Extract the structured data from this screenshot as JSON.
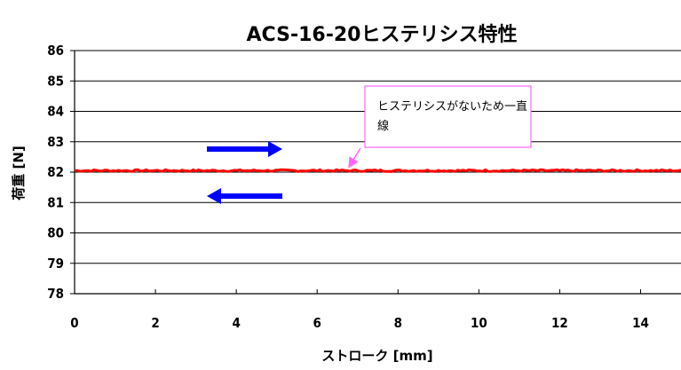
{
  "chart_data": {
    "type": "line",
    "title": "ACS-16-20ヒステリシス特性",
    "xlabel": "ストローク [mm]",
    "ylabel": "荷重 [N]",
    "xlim": [
      0,
      15
    ],
    "ylim": [
      78,
      86
    ],
    "xticks": [
      0,
      2,
      4,
      6,
      8,
      10,
      12,
      14
    ],
    "yticks": [
      78,
      79,
      80,
      81,
      82,
      83,
      84,
      85,
      86
    ],
    "grid": "horizontal",
    "series": [
      {
        "color": "#ff0000",
        "x": [
          0,
          15
        ],
        "y": [
          82.05,
          82.05
        ]
      }
    ],
    "annotations": [
      {
        "text": "ヒステリシスがないため一直線",
        "line1": "ヒステリシスがないため一直",
        "line2": "線",
        "box_color": "#ff66ff",
        "arrow_target": {
          "x": 6.7,
          "y": 82.05
        }
      }
    ],
    "direction_arrows": [
      {
        "direction": "right",
        "color": "#0000ff"
      },
      {
        "direction": "left",
        "color": "#0000ff"
      }
    ]
  }
}
